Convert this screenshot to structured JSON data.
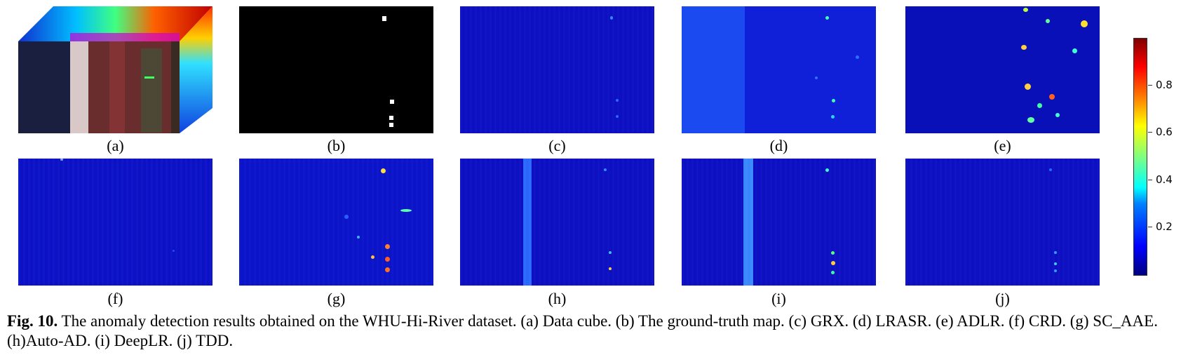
{
  "panels": [
    {
      "label": "(a)"
    },
    {
      "label": "(b)"
    },
    {
      "label": "(c)"
    },
    {
      "label": "(d)"
    },
    {
      "label": "(e)"
    },
    {
      "label": "(f)"
    },
    {
      "label": "(g)"
    },
    {
      "label": "(h)"
    },
    {
      "label": "(i)"
    },
    {
      "label": "(j)"
    }
  ],
  "colorbar": {
    "ticks": [
      "0.8",
      "0.6",
      "0.4",
      "0.2"
    ],
    "colors": [
      "#00007f",
      "#0000ff",
      "#00ffff",
      "#ffff00",
      "#ff0000",
      "#7f0000"
    ]
  },
  "caption": {
    "fig_label": "Fig. 10.",
    "text": " The anomaly detection results obtained on the WHU-Hi-River dataset. (a) Data cube. (b) The ground-truth map. (c) GRX. (d) LRASR. (e) ADLR. (f) CRD. (g) SC_AAE. (h)Auto-AD. (i) DeepLR. (j) TDD."
  }
}
